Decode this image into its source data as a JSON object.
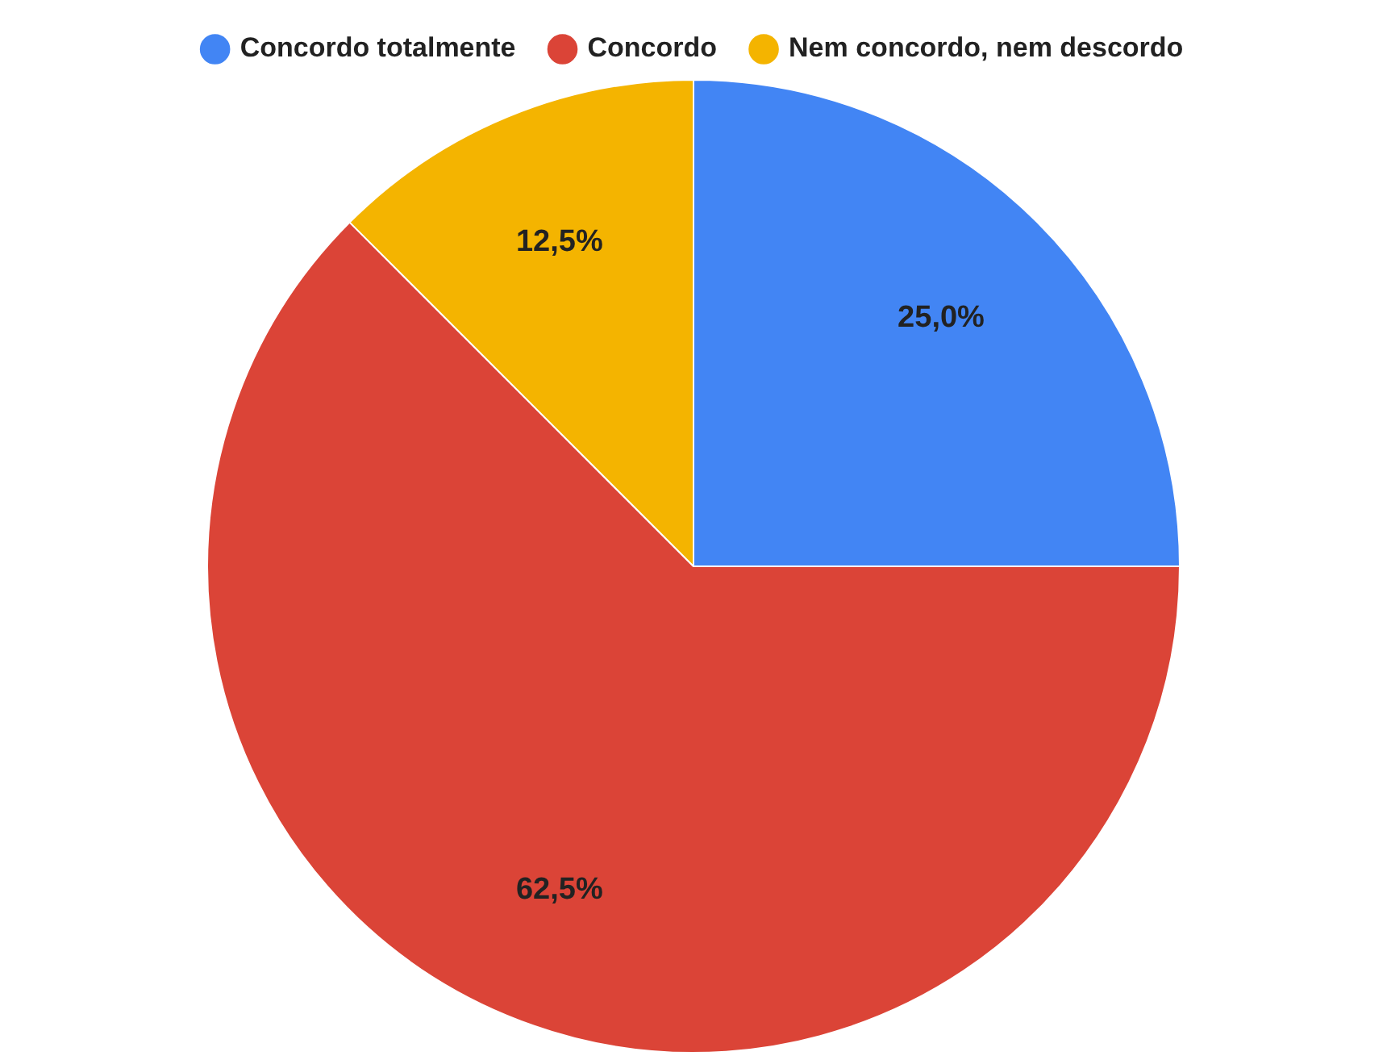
{
  "chart_data": {
    "type": "pie",
    "categories": [
      "Concordo totalmente",
      "Concordo",
      "Nem concordo, nem descordo"
    ],
    "values": [
      25,
      62.5,
      12.5
    ],
    "colors": [
      "#4285f4",
      "#db4437",
      "#f4b400"
    ],
    "value_labels": [
      "25,0%",
      "62,5%",
      "12,5%"
    ],
    "legend": "top"
  }
}
